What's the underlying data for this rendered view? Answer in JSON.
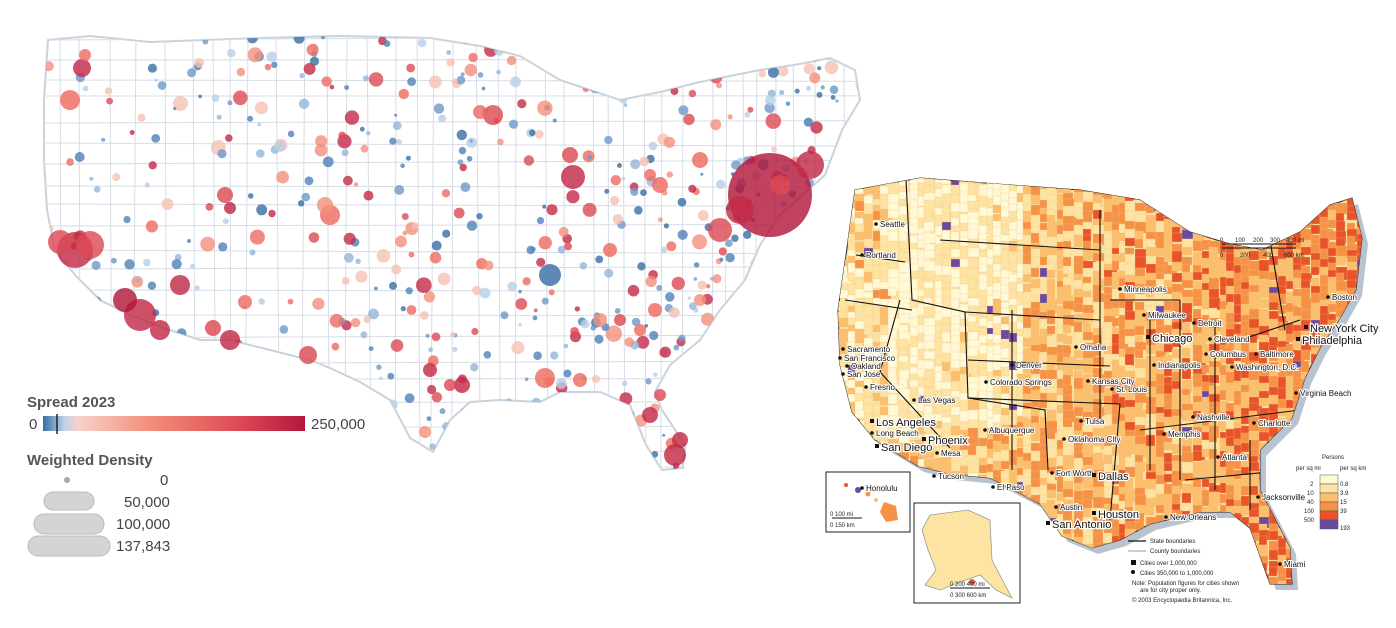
{
  "left_map": {
    "colors": {
      "low": "#3a6ea5",
      "mid": "#f2f2f2",
      "high": "#b2183b",
      "coral": "#f48270"
    },
    "legend_spread": {
      "title": "Spread 2023",
      "min_label": "0",
      "max_label": "250,000"
    },
    "legend_density": {
      "title": "Weighted Density",
      "items": [
        {
          "label": "0"
        },
        {
          "label": "50,000"
        },
        {
          "label": "100,000"
        },
        {
          "label": "137,843"
        }
      ]
    }
  },
  "right_map": {
    "colors": {
      "c1": "#fff9d6",
      "c2": "#fde4a2",
      "c3": "#fbbf6e",
      "c4": "#f59245",
      "c5": "#e8532a",
      "c6": "#6a4aa0",
      "water": "#b9c3cf"
    },
    "cities": [
      {
        "name": "Seattle"
      },
      {
        "name": "Portland"
      },
      {
        "name": "Sacramento"
      },
      {
        "name": "San Francisco"
      },
      {
        "name": "Oakland"
      },
      {
        "name": "San Jose"
      },
      {
        "name": "Fresno"
      },
      {
        "name": "Las Vegas"
      },
      {
        "name": "Los Angeles"
      },
      {
        "name": "Long Beach"
      },
      {
        "name": "San Diego"
      },
      {
        "name": "Phoenix"
      },
      {
        "name": "Mesa"
      },
      {
        "name": "Tucson"
      },
      {
        "name": "El Paso"
      },
      {
        "name": "Albuquerque"
      },
      {
        "name": "Denver"
      },
      {
        "name": "Colorado Springs"
      },
      {
        "name": "Minneapolis"
      },
      {
        "name": "Milwaukee"
      },
      {
        "name": "Chicago"
      },
      {
        "name": "Detroit"
      },
      {
        "name": "Cleveland"
      },
      {
        "name": "Columbus"
      },
      {
        "name": "Indianapolis"
      },
      {
        "name": "Omaha"
      },
      {
        "name": "Kansas City"
      },
      {
        "name": "St. Louis"
      },
      {
        "name": "Tulsa"
      },
      {
        "name": "Oklahoma City"
      },
      {
        "name": "Fort Worth"
      },
      {
        "name": "Dallas"
      },
      {
        "name": "Austin"
      },
      {
        "name": "San Antonio"
      },
      {
        "name": "Houston"
      },
      {
        "name": "New Orleans"
      },
      {
        "name": "Memphis"
      },
      {
        "name": "Nashville"
      },
      {
        "name": "Atlanta"
      },
      {
        "name": "Charlotte"
      },
      {
        "name": "Jacksonville"
      },
      {
        "name": "Miami"
      },
      {
        "name": "Virginia Beach"
      },
      {
        "name": "Washington, D.C."
      },
      {
        "name": "Baltimore"
      },
      {
        "name": "Philadelphia"
      },
      {
        "name": "New York City"
      },
      {
        "name": "Boston"
      },
      {
        "name": "Honolulu"
      }
    ],
    "scale_main": {
      "mi_labels": [
        "0",
        "100",
        "200",
        "300",
        "400 mi"
      ],
      "km_labels": [
        "0",
        "200",
        "400",
        "600 km"
      ]
    },
    "scale_hawaii": {
      "mi": "0       100 mi",
      "km": "0       150 km"
    },
    "scale_alaska": {
      "mi": "0    200    400 mi",
      "km": "0    300    600 km"
    },
    "density_legend": {
      "title": "Persons",
      "col1": "per sq mi",
      "col2": "per sq km",
      "mi_values": [
        "2",
        "10",
        "40",
        "100",
        "500"
      ],
      "km_values": [
        "0.8",
        "3.9",
        "15",
        "39",
        "193"
      ]
    },
    "key": {
      "state": "State boundaries",
      "county": "County boundaries",
      "city_big": "Cities over 1,000,000",
      "city_mid": "Cities 350,000 to 1,000,000",
      "note1": "Note: Population figures for cities shown",
      "note2": "are for city proper only.",
      "copyright": "© 2003 Encyclopædia Britannica, Inc."
    }
  }
}
